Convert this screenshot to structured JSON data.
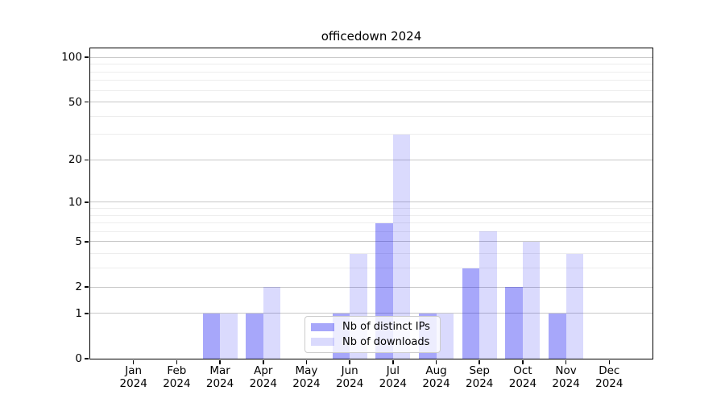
{
  "chart_data": {
    "type": "bar",
    "title": "officedown 2024",
    "categories": [
      "Jan",
      "Feb",
      "Mar",
      "Apr",
      "May",
      "Jun",
      "Jul",
      "Aug",
      "Sep",
      "Oct",
      "Nov",
      "Dec"
    ],
    "year_label": "2024",
    "series": [
      {
        "name": "Nb of distinct IPs",
        "color": "rgba(10,10,240,0.36)",
        "color_hex_on_white": "#a9a9f8",
        "values": [
          0,
          0,
          1,
          1,
          0,
          1,
          7,
          1,
          3,
          2,
          1,
          0
        ]
      },
      {
        "name": "Nb of downloads",
        "color": "rgba(10,10,240,0.15)",
        "color_hex_on_white": "#dcdcfa",
        "values": [
          0,
          0,
          1,
          2,
          0,
          4,
          30,
          1,
          6,
          5,
          4,
          0
        ]
      }
    ],
    "yscale": "log1p",
    "ylim": [
      0,
      115
    ],
    "yticks": [
      0,
      1,
      2,
      5,
      10,
      20,
      50,
      100
    ],
    "minor_yticks": [
      3,
      4,
      6,
      7,
      8,
      9,
      30,
      40,
      60,
      70,
      80,
      90
    ],
    "xlabel": "",
    "ylabel": "",
    "grid": "horizontal",
    "legend_position": "lower-center-inside",
    "colors": {
      "grid_major": "#c8c8c8",
      "grid_minor": "#ededed",
      "spine": "#000000",
      "legend_border": "#cccccc",
      "text": "#000000"
    }
  }
}
